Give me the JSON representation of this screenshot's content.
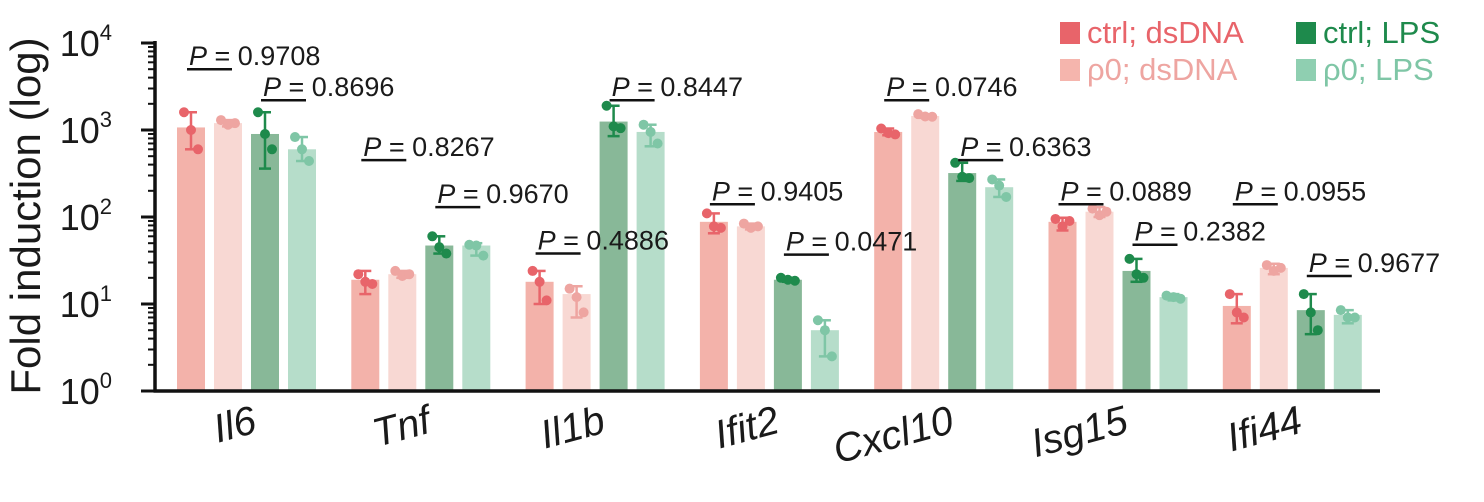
{
  "chart_data": {
    "type": "bar",
    "ylabel": "Fold induction (log)",
    "yscale": "log",
    "ylim": [
      1,
      10000
    ],
    "yticks": [
      {
        "base": "10",
        "exp": "0",
        "value": 1
      },
      {
        "base": "10",
        "exp": "1",
        "value": 10
      },
      {
        "base": "10",
        "exp": "2",
        "value": 100
      },
      {
        "base": "10",
        "exp": "3",
        "value": 1000
      },
      {
        "base": "10",
        "exp": "4",
        "value": 10000
      }
    ],
    "legend_position": "top-right",
    "categories": [
      "Il6",
      "Tnf",
      "Il1b",
      "Ifit2",
      "Cxcl10",
      "Isg15",
      "Ifi44"
    ],
    "series": [
      {
        "name": "ctrl; dsDNA",
        "bar_color": "#f3b2aa",
        "point_color": "#e8646a",
        "text_color": "#e8646a",
        "values": [
          1070,
          19,
          18,
          88,
          950,
          88,
          9.5
        ],
        "err_low": [
          600,
          13,
          10,
          65,
          870,
          70,
          6
        ],
        "err_high": [
          1600,
          24,
          24,
          110,
          1040,
          98,
          13
        ],
        "points": [
          [
            1600,
            1000,
            600
          ],
          [
            22,
            18,
            17
          ],
          [
            24,
            18,
            11
          ],
          [
            110,
            78,
            75
          ],
          [
            1040,
            920,
            890
          ],
          [
            95,
            78,
            90
          ],
          [
            13,
            8,
            7
          ]
        ]
      },
      {
        "name": "ρ0; dsDNA",
        "bar_color": "#f8d8d3",
        "point_color": "#eea5a1",
        "text_color": "#eea5a1",
        "values": [
          1200,
          22,
          13,
          78,
          1450,
          115,
          26
        ],
        "err_low": [
          1100,
          20,
          7,
          72,
          1380,
          100,
          22
        ],
        "err_high": [
          1300,
          24,
          16,
          84,
          1520,
          130,
          29
        ],
        "points": [
          [
            1300,
            1150,
            1200
          ],
          [
            24,
            21,
            22
          ],
          [
            15,
            12,
            8
          ],
          [
            84,
            75,
            78
          ],
          [
            1520,
            1430,
            1420
          ],
          [
            125,
            105,
            115
          ],
          [
            28,
            24,
            26
          ]
        ]
      },
      {
        "name": "ctrl; LPS",
        "bar_color": "#88b898",
        "point_color": "#1e8a4c",
        "text_color": "#1e8a4c",
        "values": [
          900,
          47,
          1250,
          19,
          320,
          24,
          8.5
        ],
        "err_low": [
          360,
          38,
          850,
          18,
          260,
          18,
          4.5
        ],
        "err_high": [
          1600,
          60,
          1900,
          20,
          420,
          33,
          13
        ],
        "points": [
          [
            1600,
            900,
            600
          ],
          [
            60,
            45,
            38
          ],
          [
            1900,
            1100,
            1050
          ],
          [
            20,
            19,
            18.5
          ],
          [
            420,
            290,
            280
          ],
          [
            33,
            22,
            20
          ],
          [
            13,
            8,
            5
          ]
        ]
      },
      {
        "name": "ρ0; LPS",
        "bar_color": "#b6ddca",
        "point_color": "#7fc6a6",
        "text_color": "#7fc6a6",
        "values": [
          600,
          47,
          950,
          5,
          220,
          12,
          7.5
        ],
        "err_low": [
          440,
          36,
          650,
          2.5,
          170,
          11,
          6
        ],
        "err_high": [
          830,
          50,
          1150,
          6.5,
          270,
          13,
          8.5
        ],
        "points": [
          [
            830,
            600,
            440
          ],
          [
            48,
            47,
            36
          ],
          [
            1150,
            950,
            700
          ],
          [
            6.5,
            5,
            2.5
          ],
          [
            270,
            230,
            170
          ],
          [
            12.5,
            12,
            11.5
          ],
          [
            8.5,
            7,
            7
          ]
        ]
      }
    ],
    "annotations": [
      {
        "label": "P",
        "value": "= 0.9708",
        "category": "Il6",
        "pair": "dsDNA",
        "y": 5000
      },
      {
        "label": "P",
        "value": "= 0.8696",
        "category": "Il6",
        "pair": "LPS",
        "y": 2200
      },
      {
        "label": "P",
        "value": "= 0.8267",
        "category": "Tnf",
        "pair": "dsDNA",
        "y": 450
      },
      {
        "label": "P",
        "value": "= 0.9670",
        "category": "Tnf",
        "pair": "LPS",
        "y": 130
      },
      {
        "label": "P",
        "value": "= 0.4886",
        "category": "Il1b",
        "pair": "dsDNA",
        "y": 38
      },
      {
        "label": "P",
        "value": "= 0.8447",
        "category": "Il1b",
        "pair": "LPS",
        "y": 2200
      },
      {
        "label": "P",
        "value": "= 0.9405",
        "category": "Ifit2",
        "pair": "dsDNA",
        "y": 140
      },
      {
        "label": "P",
        "value": "= 0.0471",
        "category": "Ifit2",
        "pair": "LPS",
        "y": 37
      },
      {
        "label": "P",
        "value": "= 0.0746",
        "category": "Cxcl10",
        "pair": "dsDNA",
        "y": 2200
      },
      {
        "label": "P",
        "value": "= 0.6363",
        "category": "Cxcl10",
        "pair": "LPS",
        "y": 450
      },
      {
        "label": "P",
        "value": "= 0.0889",
        "category": "Isg15",
        "pair": "dsDNA",
        "y": 140
      },
      {
        "label": "P",
        "value": "= 0.2382",
        "category": "Isg15",
        "pair": "LPS",
        "y": 48
      },
      {
        "label": "P",
        "value": "= 0.0955",
        "category": "Ifi44",
        "pair": "dsDNA",
        "y": 140
      },
      {
        "label": "P",
        "value": "= 0.9677",
        "category": "Ifi44",
        "pair": "LPS",
        "y": 21
      }
    ]
  }
}
